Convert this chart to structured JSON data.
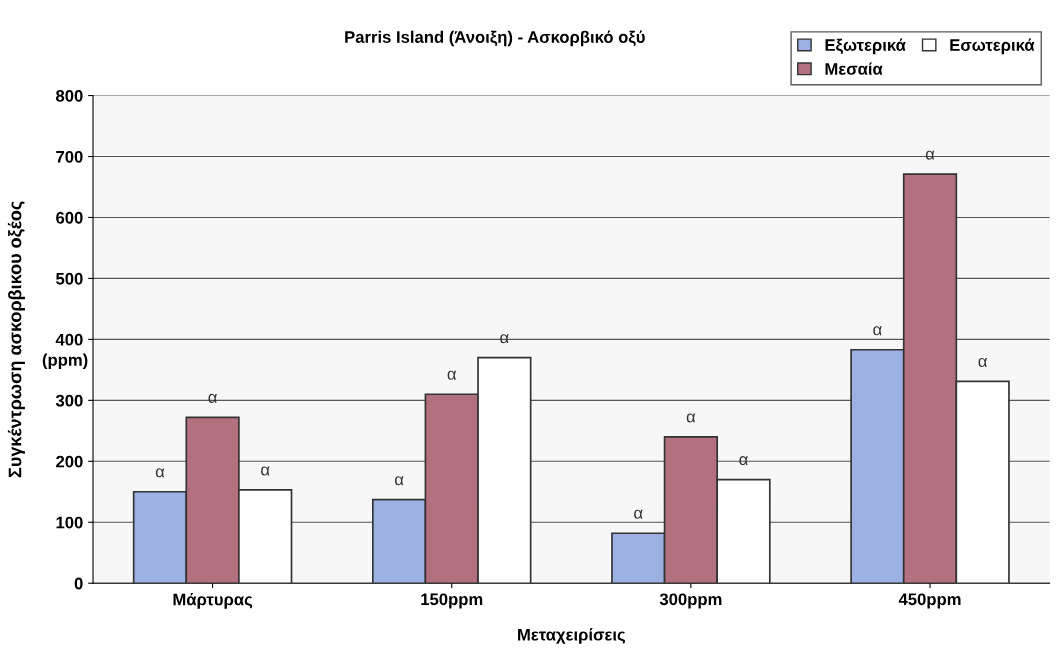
{
  "chart_data": {
    "type": "bar",
    "title": "Parris Island (Άνοιξη) - Ασκορβικό οξύ",
    "xlabel": "Μεταχειρίσεις",
    "ylabel": "Συγκέντρωση ασκορβικου οξέος",
    "annotations": [
      "(ppm)"
    ],
    "categories": [
      "Μάρτυρας",
      "150ppm",
      "300ppm",
      "450ppm"
    ],
    "series": [
      {
        "name": "Εξωτερικά",
        "color": "#9db0e2",
        "values": [
          150,
          137,
          82,
          383
        ],
        "value_labels": [
          "α",
          "α",
          "α",
          "α"
        ]
      },
      {
        "name": "Μεσαία",
        "color": "#b3707f",
        "values": [
          272,
          310,
          240,
          671
        ],
        "value_labels": [
          "α",
          "α",
          "α",
          "α"
        ]
      },
      {
        "name": "Εσωτερικά",
        "color": "#ffffff",
        "values": [
          153,
          370,
          170,
          331
        ],
        "value_labels": [
          "α",
          "α",
          "α",
          "α"
        ]
      }
    ],
    "ylim": [
      0,
      800
    ],
    "yticks": [
      0,
      100,
      200,
      300,
      400,
      500,
      600,
      700,
      800
    ],
    "grid": "y",
    "legend": "top right"
  }
}
